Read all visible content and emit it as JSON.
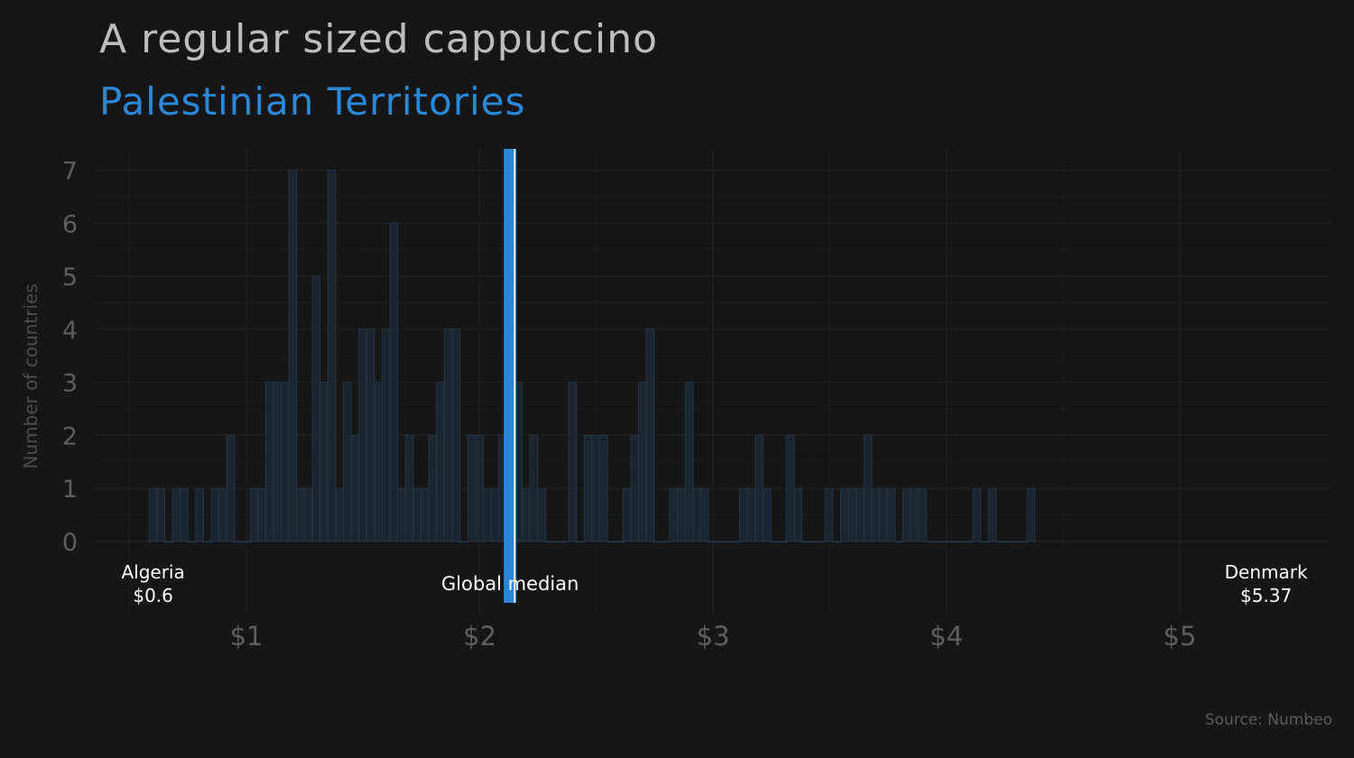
{
  "title": "A regular sized cappuccino",
  "subtitle": "Palestinian Territories",
  "source": "Source: Numbeo",
  "colors": {
    "background": "#161616",
    "bar_fill": "#1b2530",
    "bar_stroke": "#243545",
    "highlight": "#2b88d8",
    "text_light": "#ffffff",
    "axis_text": "#5e5e5e",
    "grid": "#1e1e1e"
  },
  "chart_data": {
    "type": "bar",
    "title": "A regular sized cappuccino",
    "subtitle": "Palestinian Territories",
    "xlabel": "",
    "ylabel": "Number of countries",
    "xlim": [
      0.35,
      5.65
    ],
    "ylim": [
      0,
      7.4
    ],
    "x_ticks": [
      1,
      2,
      3,
      4,
      5
    ],
    "x_tick_labels": [
      "$1",
      "$2",
      "$3",
      "$4",
      "$5"
    ],
    "y_ticks": [
      0,
      1,
      2,
      3,
      4,
      5,
      6,
      7
    ],
    "y_tick_labels": [
      "0",
      "1",
      "2",
      "3",
      "4",
      "5",
      "6",
      "7"
    ],
    "grid": true,
    "bin_start": 0.583,
    "bin_width": 0.0333,
    "counts": [
      1,
      1,
      0,
      1,
      1,
      0,
      1,
      0,
      1,
      1,
      2,
      0,
      0,
      1,
      1,
      3,
      3,
      3,
      7,
      1,
      1,
      5,
      3,
      7,
      1,
      3,
      2,
      4,
      4,
      3,
      4,
      6,
      1,
      2,
      1,
      1,
      2,
      3,
      4,
      4,
      0,
      2,
      2,
      1,
      1,
      2,
      1,
      3,
      1,
      2,
      1,
      0,
      0,
      0,
      3,
      0,
      2,
      2,
      2,
      0,
      0,
      1,
      2,
      3,
      4,
      0,
      0,
      1,
      1,
      3,
      1,
      1,
      0,
      0,
      0,
      0,
      1,
      1,
      2,
      1,
      0,
      0,
      2,
      1,
      0,
      0,
      0,
      1,
      0,
      1,
      1,
      1,
      2,
      1,
      1,
      1,
      0,
      1,
      1,
      1,
      0,
      0,
      0,
      0,
      0,
      0,
      1,
      0,
      1,
      0,
      0,
      0,
      0,
      1
    ],
    "highlight": {
      "label": "Palestinian Territories",
      "value": 2.13
    },
    "annotations": [
      {
        "text": "Algeria",
        "value_text": "$0.6",
        "x": 0.6
      },
      {
        "text": "Global median",
        "x": 2.13
      },
      {
        "text": "Denmark",
        "value_text": "$5.37",
        "x": 5.37
      }
    ]
  }
}
